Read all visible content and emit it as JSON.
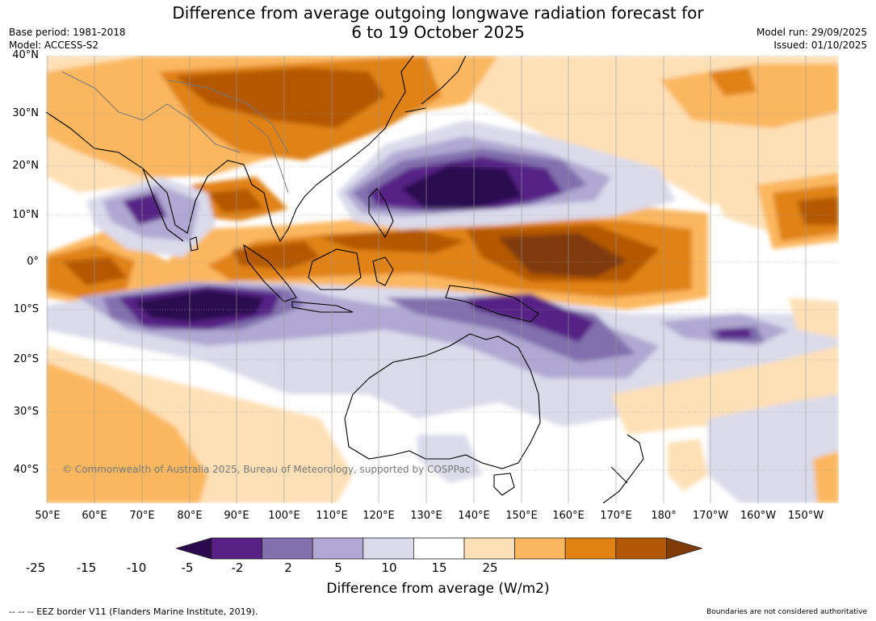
{
  "header": {
    "title": "Difference from average outgoing longwave radiation forecast for\n6 to 19 October 2025",
    "base_period": "Base period: 1981-2018",
    "model": "Model: ACCESS-S2",
    "model_run": "Model run: 29/09/2025",
    "issued": "Issued: 01/10/2025"
  },
  "map": {
    "lat_labels": [
      "40°N",
      "30°N",
      "20°N",
      "10°N",
      "0°",
      "10°S",
      "20°S",
      "30°S",
      "40°S"
    ],
    "lon_labels": [
      "50°E",
      "60°E",
      "70°E",
      "80°E",
      "90°E",
      "100°E",
      "110°E",
      "120°E",
      "130°E",
      "140°E",
      "150°E",
      "160°E",
      "170°E",
      "180°",
      "170°W",
      "160°W",
      "150°W"
    ],
    "copyright": "© Commonwealth of Australia 2025, Bureau of Meteorology, supported by COSPPac"
  },
  "colorbar": {
    "title": "Difference from average (W/m2)",
    "ticks": [
      "-25",
      "-15",
      "-10",
      "-5",
      "-2",
      "2",
      "5",
      "10",
      "15",
      "25"
    ],
    "colors": [
      "#2b0a4f",
      "#572186",
      "#8170ad",
      "#b0a8d2",
      "#dadaeb",
      "#ffffff",
      "#fee0b6",
      "#fbb75f",
      "#e08214",
      "#b35806",
      "#7f3b08"
    ]
  },
  "footer": {
    "eez_note": "--  --  -- EEZ border V11 (Flanders Marine Institute, 2019).",
    "boundaries_note": "Boundaries are not considered authoritative"
  }
}
